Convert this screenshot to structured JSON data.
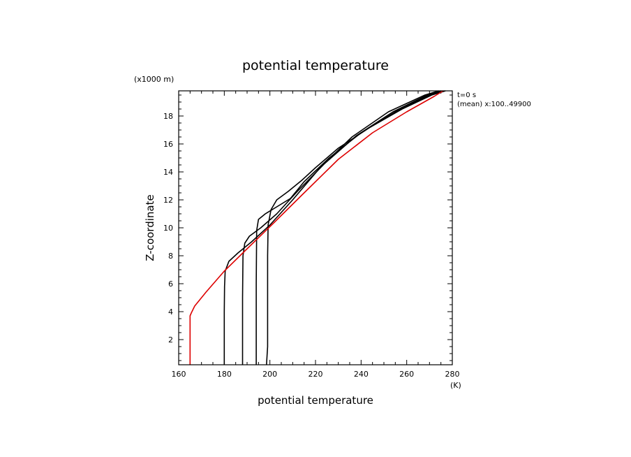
{
  "chart_data": {
    "type": "line",
    "title": "potential temperature",
    "xlabel": "potential temperature",
    "xunit": "(K)",
    "ylabel": "Z-coordinate",
    "yunit": "(x1000 m)",
    "annotations": [
      "t=0 s",
      "(mean) x:100..49900"
    ],
    "xlim": [
      160,
      280
    ],
    "ylim": [
      0.2,
      19.8
    ],
    "xticks": [
      160,
      180,
      200,
      220,
      240,
      260,
      280
    ],
    "yticks": [
      2,
      4,
      6,
      8,
      10,
      12,
      14,
      16,
      18
    ],
    "grid": false,
    "series": [
      {
        "color": "#000000",
        "x": [
          180,
          180,
          180.1,
          180.4,
          182,
          186,
          192,
          200,
          210,
          222,
          236,
          252,
          268,
          274
        ],
        "y": [
          0.2,
          4,
          5.8,
          6.9,
          7.6,
          8.2,
          9.0,
          10.2,
          12.0,
          14.3,
          16.5,
          18.3,
          19.5,
          19.8
        ]
      },
      {
        "color": "#000000",
        "x": [
          188,
          188,
          188.2,
          189,
          191,
          196,
          203,
          212,
          224,
          238,
          254,
          269,
          275
        ],
        "y": [
          0.2,
          5,
          8.0,
          8.9,
          9.4,
          10.0,
          11.0,
          12.6,
          14.6,
          16.6,
          18.3,
          19.5,
          19.8
        ]
      },
      {
        "color": "#000000",
        "x": [
          194,
          194,
          194.2,
          195,
          198,
          203,
          209,
          215,
          226,
          240,
          256,
          270,
          276
        ],
        "y": [
          0.2,
          6,
          9.8,
          10.6,
          11.0,
          11.5,
          12.1,
          13.3,
          15.0,
          16.8,
          18.4,
          19.5,
          19.8
        ]
      },
      {
        "color": "#000000",
        "x": [
          198.5,
          199,
          199,
          199.2,
          200.5,
          203,
          208,
          214,
          220,
          230,
          244,
          258,
          271,
          277
        ],
        "y": [
          0.2,
          1.5,
          8,
          10.2,
          11.3,
          12.0,
          12.6,
          13.4,
          14.3,
          15.7,
          17.2,
          18.5,
          19.5,
          19.8
        ]
      },
      {
        "color": "#dd0000",
        "x": [
          165,
          165,
          165.5,
          167,
          172,
          180,
          190,
          202,
          215,
          230,
          245,
          260,
          272,
          276
        ],
        "y": [
          0.2,
          3.7,
          3.9,
          4.4,
          5.4,
          6.9,
          8.5,
          10.4,
          12.5,
          14.9,
          16.8,
          18.3,
          19.4,
          19.8
        ]
      }
    ]
  }
}
